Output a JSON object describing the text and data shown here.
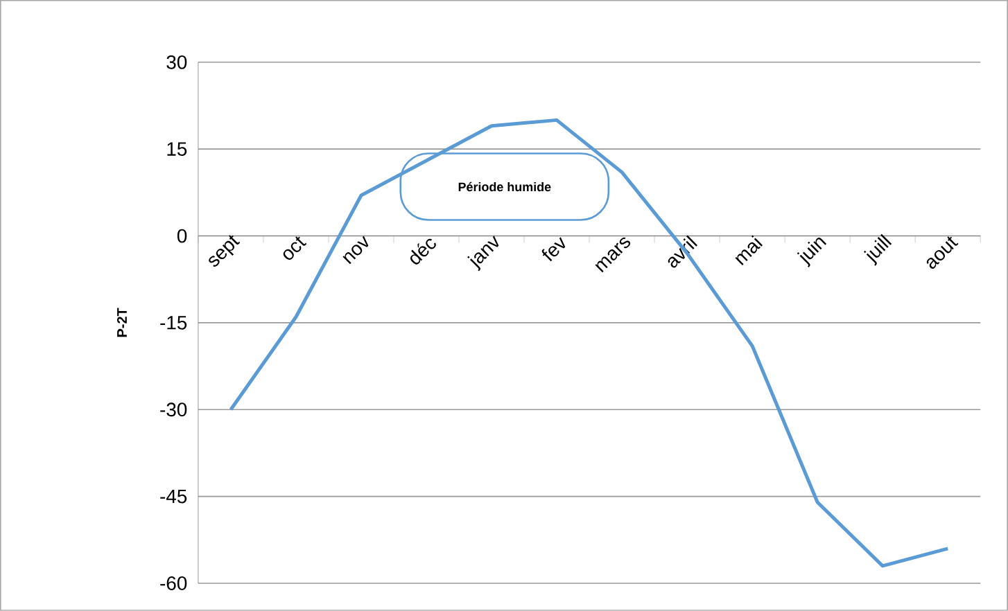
{
  "chart_data": {
    "type": "line",
    "ylabel": "P-2T",
    "categories": [
      "sept",
      "oct",
      "nov",
      "déc",
      "janv",
      "fev",
      "mars",
      "avril",
      "mai",
      "juin",
      "juill",
      "aout"
    ],
    "series": [
      {
        "color": "#5b9bd5",
        "values": [
          -30,
          -14,
          7,
          null,
          19,
          20,
          11,
          -3,
          -19,
          -46,
          -57,
          -54
        ]
      }
    ],
    "ylim": [
      -60,
      30
    ],
    "yticks": [
      -60,
      -45,
      -30,
      -15,
      0,
      15,
      30
    ],
    "grid": "y",
    "marker": "none",
    "line_style": "solid",
    "annotations": [
      "Période humide"
    ]
  }
}
